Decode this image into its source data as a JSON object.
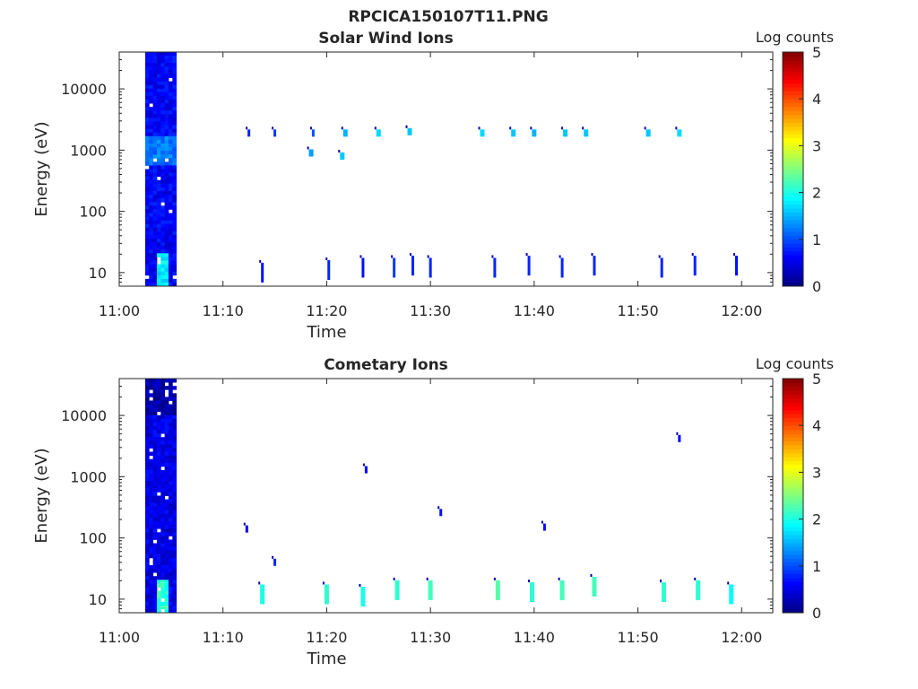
{
  "figure": {
    "title": "RPCICA150107T11.PNG"
  },
  "chart_data": [
    {
      "type": "heatmap",
      "title": "Solar Wind Ions",
      "xlabel": "Time",
      "ylabel": "Energy (eV)",
      "x_ticks": [
        "11:00",
        "11:10",
        "11:20",
        "11:30",
        "11:40",
        "11:50",
        "12:00"
      ],
      "xlim": [
        "11:00",
        "12:03"
      ],
      "y_scale": "log",
      "y_ticks": [
        "10",
        "100",
        "1000",
        "10000"
      ],
      "ylim": [
        6,
        40000
      ],
      "colorbar": {
        "label": "Log counts",
        "ticks": [
          "0",
          "1",
          "2",
          "3",
          "4",
          "5"
        ],
        "range": [
          0,
          5
        ],
        "colormap": "jet"
      },
      "intense_block": {
        "t_start": "11:02.5",
        "t_end": "11:05.5",
        "typical_log_counts": 0.6,
        "peak_log_counts_near": [
          10,
          1000
        ]
      },
      "events": [
        {
          "t": "11:12.5",
          "e": 1900,
          "c": 0.8
        },
        {
          "t": "11:13.8",
          "e": 10,
          "c": 0.7
        },
        {
          "t": "11:15.0",
          "e": 1900,
          "c": 0.9
        },
        {
          "t": "11:18.7",
          "e": 1900,
          "c": 1.0
        },
        {
          "t": "11:18.5",
          "e": 900,
          "c": 1.4
        },
        {
          "t": "11:20.2",
          "e": 11,
          "c": 0.8
        },
        {
          "t": "11:21.5",
          "e": 800,
          "c": 1.6
        },
        {
          "t": "11:21.8",
          "e": 1900,
          "c": 1.5
        },
        {
          "t": "11:23.5",
          "e": 12,
          "c": 0.7
        },
        {
          "t": "11:25.0",
          "e": 1900,
          "c": 1.7
        },
        {
          "t": "11:26.5",
          "e": 12,
          "c": 0.9
        },
        {
          "t": "11:28.3",
          "e": 13,
          "c": 0.8
        },
        {
          "t": "11:28.0",
          "e": 2000,
          "c": 1.6
        },
        {
          "t": "11:30.0",
          "e": 12,
          "c": 0.8
        },
        {
          "t": "11:35.0",
          "e": 1900,
          "c": 1.7
        },
        {
          "t": "11:36.2",
          "e": 12,
          "c": 0.8
        },
        {
          "t": "11:38.0",
          "e": 1900,
          "c": 1.6
        },
        {
          "t": "11:39.5",
          "e": 13,
          "c": 0.8
        },
        {
          "t": "11:40.0",
          "e": 1900,
          "c": 1.5
        },
        {
          "t": "11:42.7",
          "e": 12,
          "c": 0.8
        },
        {
          "t": "11:43.0",
          "e": 1900,
          "c": 1.6
        },
        {
          "t": "11:45.0",
          "e": 1900,
          "c": 1.6
        },
        {
          "t": "11:45.8",
          "e": 13,
          "c": 0.8
        },
        {
          "t": "11:51.0",
          "e": 1900,
          "c": 1.6
        },
        {
          "t": "11:52.3",
          "e": 12,
          "c": 0.8
        },
        {
          "t": "11:54.0",
          "e": 1900,
          "c": 1.7
        },
        {
          "t": "11:55.5",
          "e": 13,
          "c": 0.8
        },
        {
          "t": "11:59.5",
          "e": 13,
          "c": 0.7
        }
      ]
    },
    {
      "type": "heatmap",
      "title": "Cometary Ions",
      "xlabel": "Time",
      "ylabel": "Energy (eV)",
      "x_ticks": [
        "11:00",
        "11:10",
        "11:20",
        "11:30",
        "11:40",
        "11:50",
        "12:00"
      ],
      "xlim": [
        "11:00",
        "12:03"
      ],
      "y_scale": "log",
      "y_ticks": [
        "10",
        "100",
        "1000",
        "10000"
      ],
      "ylim": [
        6,
        40000
      ],
      "colorbar": {
        "label": "Log counts",
        "ticks": [
          "0",
          "1",
          "2",
          "3",
          "4",
          "5"
        ],
        "range": [
          0,
          5
        ],
        "colormap": "jet"
      },
      "intense_block": {
        "t_start": "11:02.5",
        "t_end": "11:05.5",
        "typical_log_counts": 0.5,
        "peak_log_counts_near": [
          10,
          10
        ]
      },
      "events": [
        {
          "t": "11:12.3",
          "e": 140,
          "c": 0.5
        },
        {
          "t": "11:13.8",
          "e": 12,
          "c": 2.0
        },
        {
          "t": "11:15.0",
          "e": 40,
          "c": 0.8
        },
        {
          "t": "11:20.0",
          "e": 12,
          "c": 2.1
        },
        {
          "t": "11:23.5",
          "e": 11,
          "c": 2.0
        },
        {
          "t": "11:23.8",
          "e": 1300,
          "c": 0.6
        },
        {
          "t": "11:26.8",
          "e": 14,
          "c": 2.1
        },
        {
          "t": "11:30.0",
          "e": 14,
          "c": 2.2
        },
        {
          "t": "11:31.0",
          "e": 260,
          "c": 0.7
        },
        {
          "t": "11:36.5",
          "e": 14,
          "c": 2.3
        },
        {
          "t": "11:39.8",
          "e": 13,
          "c": 2.1
        },
        {
          "t": "11:41.0",
          "e": 150,
          "c": 0.7
        },
        {
          "t": "11:42.7",
          "e": 14,
          "c": 2.2
        },
        {
          "t": "11:45.8",
          "e": 16,
          "c": 2.2
        },
        {
          "t": "11:52.5",
          "e": 13,
          "c": 2.1
        },
        {
          "t": "11:54.0",
          "e": 4200,
          "c": 0.6
        },
        {
          "t": "11:55.8",
          "e": 14,
          "c": 2.1
        },
        {
          "t": "11:59.0",
          "e": 12,
          "c": 1.9
        }
      ]
    }
  ]
}
